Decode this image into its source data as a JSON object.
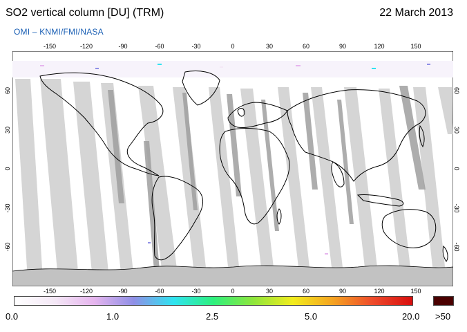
{
  "header": {
    "title": "SO2 vertical column [DU] (TRM)",
    "date": "22 March 2013",
    "credit": "OMI  –  KNMI/FMI/NASA"
  },
  "map": {
    "lon_ticks": [
      "-150",
      "-120",
      "-90",
      "-60",
      "-30",
      "0",
      "30",
      "60",
      "90",
      "120",
      "150"
    ],
    "lat_ticks": [
      "60",
      "30",
      "0",
      "-30",
      "-60"
    ],
    "lon_range": [
      -180,
      180
    ],
    "lat_range": [
      -90,
      90
    ],
    "colors": {
      "land_outline": "#000000",
      "orbit_gap": "#d3d3d3",
      "overlap": "#9a9a9a",
      "background": "#ffffff"
    }
  },
  "colorbar": {
    "labels": [
      "0.0",
      "1.0",
      "2.5",
      "5.0",
      "20.0",
      ">50"
    ],
    "scale_colors": [
      "#ffffff",
      "#f4e8f6",
      "#e6b5ee",
      "#8f8fe6",
      "#2fe3f0",
      "#2ef07d",
      "#8ee63c",
      "#f2ec1d",
      "#f5a321",
      "#ee4b2b",
      "#d80e0e"
    ],
    "over_color": "#4a0000"
  }
}
